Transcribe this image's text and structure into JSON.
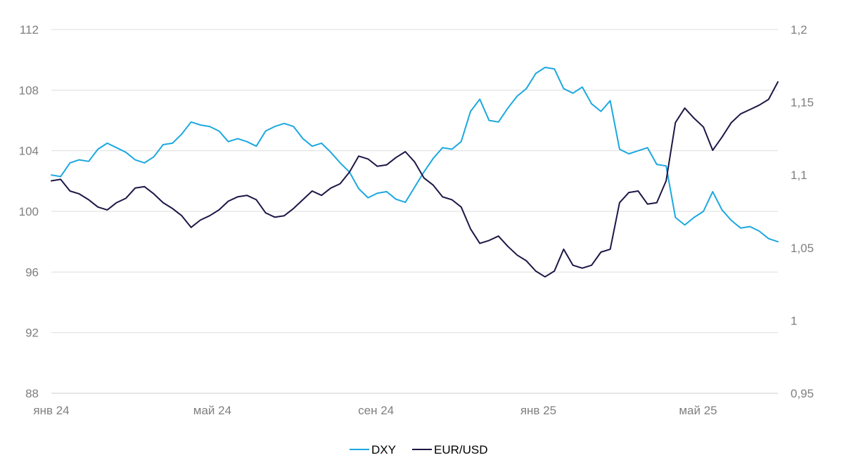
{
  "chart_data": {
    "type": "line",
    "x_ticks": [
      "янв 24",
      "май 24",
      "сен 24",
      "янв 25",
      "май 25"
    ],
    "x_tick_dates": [
      "2024-01-01",
      "2024-05-01",
      "2024-09-01",
      "2025-01-01",
      "2025-05-01"
    ],
    "x_range": [
      "2024-01-01",
      "2025-06-30"
    ],
    "y_left": {
      "ticks": [
        "112",
        "108",
        "104",
        "100",
        "96",
        "92",
        "88"
      ],
      "range": [
        88,
        112
      ]
    },
    "y_right": {
      "ticks": [
        "1,2",
        "1,15",
        "1,1",
        "1,05",
        "1",
        "0,95"
      ],
      "range": [
        0.95,
        1.2
      ]
    },
    "grid": true,
    "legend_position": "bottom",
    "series": [
      {
        "name": "DXY",
        "axis": "left",
        "color": "#1ba8e0",
        "points": [
          [
            "2024-01-01",
            102.4
          ],
          [
            "2024-01-08",
            102.3
          ],
          [
            "2024-01-15",
            103.2
          ],
          [
            "2024-01-22",
            103.4
          ],
          [
            "2024-01-29",
            103.3
          ],
          [
            "2024-02-05",
            104.1
          ],
          [
            "2024-02-12",
            104.5
          ],
          [
            "2024-02-19",
            104.2
          ],
          [
            "2024-02-26",
            103.9
          ],
          [
            "2024-03-04",
            103.4
          ],
          [
            "2024-03-11",
            103.2
          ],
          [
            "2024-03-18",
            103.6
          ],
          [
            "2024-03-25",
            104.4
          ],
          [
            "2024-04-01",
            104.5
          ],
          [
            "2024-04-08",
            105.1
          ],
          [
            "2024-04-15",
            105.9
          ],
          [
            "2024-04-22",
            105.7
          ],
          [
            "2024-04-29",
            105.6
          ],
          [
            "2024-05-06",
            105.3
          ],
          [
            "2024-05-13",
            104.6
          ],
          [
            "2024-05-20",
            104.8
          ],
          [
            "2024-05-27",
            104.6
          ],
          [
            "2024-06-03",
            104.3
          ],
          [
            "2024-06-10",
            105.3
          ],
          [
            "2024-06-17",
            105.6
          ],
          [
            "2024-06-24",
            105.8
          ],
          [
            "2024-07-01",
            105.6
          ],
          [
            "2024-07-08",
            104.8
          ],
          [
            "2024-07-15",
            104.3
          ],
          [
            "2024-07-22",
            104.5
          ],
          [
            "2024-07-29",
            103.9
          ],
          [
            "2024-08-05",
            103.2
          ],
          [
            "2024-08-12",
            102.6
          ],
          [
            "2024-08-19",
            101.5
          ],
          [
            "2024-08-26",
            100.9
          ],
          [
            "2024-09-02",
            101.2
          ],
          [
            "2024-09-09",
            101.3
          ],
          [
            "2024-09-16",
            100.8
          ],
          [
            "2024-09-23",
            100.6
          ],
          [
            "2024-09-30",
            101.6
          ],
          [
            "2024-10-07",
            102.6
          ],
          [
            "2024-10-14",
            103.5
          ],
          [
            "2024-10-21",
            104.2
          ],
          [
            "2024-10-28",
            104.1
          ],
          [
            "2024-11-04",
            104.6
          ],
          [
            "2024-11-11",
            106.6
          ],
          [
            "2024-11-18",
            107.4
          ],
          [
            "2024-11-25",
            106.0
          ],
          [
            "2024-12-02",
            105.9
          ],
          [
            "2024-12-09",
            106.8
          ],
          [
            "2024-12-16",
            107.6
          ],
          [
            "2024-12-23",
            108.1
          ],
          [
            "2024-12-30",
            109.1
          ],
          [
            "2025-01-06",
            109.5
          ],
          [
            "2025-01-13",
            109.4
          ],
          [
            "2025-01-20",
            108.1
          ],
          [
            "2025-01-27",
            107.8
          ],
          [
            "2025-02-03",
            108.2
          ],
          [
            "2025-02-10",
            107.1
          ],
          [
            "2025-02-17",
            106.6
          ],
          [
            "2025-02-24",
            107.3
          ],
          [
            "2025-03-03",
            104.1
          ],
          [
            "2025-03-10",
            103.8
          ],
          [
            "2025-03-17",
            104.0
          ],
          [
            "2025-03-24",
            104.2
          ],
          [
            "2025-03-31",
            103.1
          ],
          [
            "2025-04-07",
            103.0
          ],
          [
            "2025-04-14",
            99.6
          ],
          [
            "2025-04-21",
            99.1
          ],
          [
            "2025-04-28",
            99.6
          ],
          [
            "2025-05-05",
            100.0
          ],
          [
            "2025-05-12",
            101.3
          ],
          [
            "2025-05-19",
            100.1
          ],
          [
            "2025-05-26",
            99.4
          ],
          [
            "2025-06-02",
            98.9
          ],
          [
            "2025-06-09",
            99.0
          ],
          [
            "2025-06-16",
            98.7
          ],
          [
            "2025-06-23",
            98.2
          ],
          [
            "2025-06-30",
            98.0
          ]
        ]
      },
      {
        "name": "EUR/USD",
        "axis": "right",
        "color": "#1c1745",
        "points": [
          [
            "2024-01-01",
            1.096
          ],
          [
            "2024-01-08",
            1.097
          ],
          [
            "2024-01-15",
            1.089
          ],
          [
            "2024-01-22",
            1.087
          ],
          [
            "2024-01-29",
            1.083
          ],
          [
            "2024-02-05",
            1.078
          ],
          [
            "2024-02-12",
            1.076
          ],
          [
            "2024-02-19",
            1.081
          ],
          [
            "2024-02-26",
            1.084
          ],
          [
            "2024-03-04",
            1.091
          ],
          [
            "2024-03-11",
            1.092
          ],
          [
            "2024-03-18",
            1.087
          ],
          [
            "2024-03-25",
            1.081
          ],
          [
            "2024-04-01",
            1.077
          ],
          [
            "2024-04-08",
            1.072
          ],
          [
            "2024-04-15",
            1.064
          ],
          [
            "2024-04-22",
            1.069
          ],
          [
            "2024-04-29",
            1.072
          ],
          [
            "2024-05-06",
            1.076
          ],
          [
            "2024-05-13",
            1.082
          ],
          [
            "2024-05-20",
            1.085
          ],
          [
            "2024-05-27",
            1.086
          ],
          [
            "2024-06-03",
            1.083
          ],
          [
            "2024-06-10",
            1.074
          ],
          [
            "2024-06-17",
            1.071
          ],
          [
            "2024-06-24",
            1.072
          ],
          [
            "2024-07-01",
            1.077
          ],
          [
            "2024-07-08",
            1.083
          ],
          [
            "2024-07-15",
            1.089
          ],
          [
            "2024-07-22",
            1.086
          ],
          [
            "2024-07-29",
            1.091
          ],
          [
            "2024-08-05",
            1.094
          ],
          [
            "2024-08-12",
            1.102
          ],
          [
            "2024-08-19",
            1.113
          ],
          [
            "2024-08-26",
            1.111
          ],
          [
            "2024-09-02",
            1.106
          ],
          [
            "2024-09-09",
            1.107
          ],
          [
            "2024-09-16",
            1.112
          ],
          [
            "2024-09-23",
            1.116
          ],
          [
            "2024-09-30",
            1.109
          ],
          [
            "2024-10-07",
            1.098
          ],
          [
            "2024-10-14",
            1.093
          ],
          [
            "2024-10-21",
            1.085
          ],
          [
            "2024-10-28",
            1.083
          ],
          [
            "2024-11-04",
            1.078
          ],
          [
            "2024-11-11",
            1.063
          ],
          [
            "2024-11-18",
            1.053
          ],
          [
            "2024-11-25",
            1.055
          ],
          [
            "2024-12-02",
            1.058
          ],
          [
            "2024-12-09",
            1.051
          ],
          [
            "2024-12-16",
            1.045
          ],
          [
            "2024-12-23",
            1.041
          ],
          [
            "2024-12-30",
            1.034
          ],
          [
            "2025-01-06",
            1.03
          ],
          [
            "2025-01-13",
            1.034
          ],
          [
            "2025-01-20",
            1.049
          ],
          [
            "2025-01-27",
            1.038
          ],
          [
            "2025-02-03",
            1.036
          ],
          [
            "2025-02-10",
            1.038
          ],
          [
            "2025-02-17",
            1.047
          ],
          [
            "2025-02-24",
            1.049
          ],
          [
            "2025-03-03",
            1.081
          ],
          [
            "2025-03-10",
            1.088
          ],
          [
            "2025-03-17",
            1.089
          ],
          [
            "2025-03-24",
            1.08
          ],
          [
            "2025-03-31",
            1.081
          ],
          [
            "2025-04-07",
            1.096
          ],
          [
            "2025-04-14",
            1.136
          ],
          [
            "2025-04-21",
            1.146
          ],
          [
            "2025-04-28",
            1.139
          ],
          [
            "2025-05-05",
            1.133
          ],
          [
            "2025-05-12",
            1.117
          ],
          [
            "2025-05-19",
            1.126
          ],
          [
            "2025-05-26",
            1.136
          ],
          [
            "2025-06-02",
            1.142
          ],
          [
            "2025-06-09",
            1.145
          ],
          [
            "2025-06-16",
            1.148
          ],
          [
            "2025-06-23",
            1.152
          ],
          [
            "2025-06-30",
            1.164
          ]
        ]
      }
    ]
  }
}
